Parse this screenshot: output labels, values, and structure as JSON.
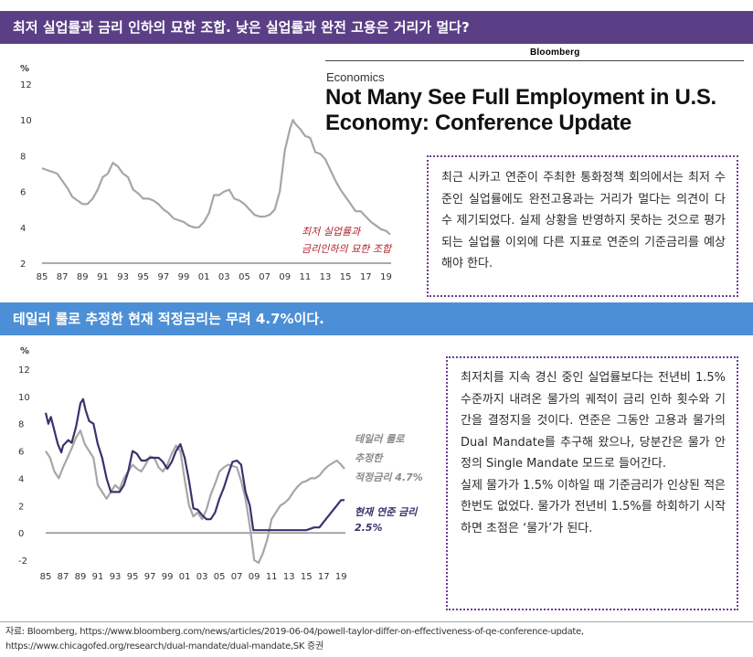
{
  "banner_top": {
    "title": "최저 실업률과 금리 인하의 묘한 조합. 낮은 실업률과 완전 고용은 거리가 멀다?",
    "color": "#5b3f86"
  },
  "banner_middle": {
    "title": "테일러 룰로 추정한 현재 적정금리는 무려 4.7%이다.",
    "color": "#4c8fd6"
  },
  "news_clip": {
    "source_logo": "Bloomberg",
    "section": "Economics",
    "headline": "Not Many See Full Employment in U.S. Economy: Conference Update"
  },
  "note_top": {
    "text": "최근 시카고 연준이 주최한 통화정책 회의에서는 최저 수준인 실업률에도 완전고용과는 거리가 멀다는 의견이 다수 제기되었다. 실제 상황을 반영하지 못하는 것으로 평가되는 실업률 이외에 다른 지표로 연준의 기준금리를 예상해야 한다."
  },
  "note_bottom": {
    "paragraph1": "최저치를 지속 경신 중인 실업률보다는 전년비 1.5% 수준까지 내려온 물가의 궤적이 금리 인하 횟수와 기간을 결정지을 것이다. 연준은 그동안 고용과 물가의 Dual Mandate를 추구해 왔으나, 당분간은 물가 안정의 Single Mandate 모드로 들어간다.",
    "paragraph2": "실제 물가가 1.5% 이하일 때 기준금리가 인상된 적은 한번도 없었다. 물가가 전년비 1.5%를 하회하기 시작하면 초점은 ‘물가’가 된다."
  },
  "source": {
    "line1": "자료: Bloomberg, https://www.bloomberg.com/news/articles/2019-06-04/powell-taylor-differ-on-effectiveness-of-qe-conference-update,",
    "line2": "https://www.chicagofed.org/research/dual-mandate/dual-mandate,SK 증권"
  },
  "chart_data": [
    {
      "type": "line",
      "title": "",
      "unit_label": "%",
      "ylim": [
        2,
        12
      ],
      "yticks": [
        2,
        4,
        6,
        8,
        10,
        12
      ],
      "xlim": [
        1985,
        2019.5
      ],
      "xtick_values": [
        1985,
        1987,
        1989,
        1991,
        1993,
        1995,
        1997,
        1999,
        2001,
        2003,
        2005,
        2007,
        2009,
        2011,
        2013,
        2015,
        2017,
        2019
      ],
      "xtick_labels": [
        "85",
        "87",
        "89",
        "91",
        "93",
        "95",
        "97",
        "99",
        "01",
        "03",
        "05",
        "07",
        "09",
        "11",
        "13",
        "15",
        "17",
        "19"
      ],
      "grid": false,
      "annotation": [
        "최저 실업률과",
        "금리인하의 묘한 조합"
      ],
      "series": [
        {
          "color": "#a6a6a6",
          "x": [
            1985,
            1985.5,
            1986,
            1986.5,
            1987,
            1987.5,
            1988,
            1988.5,
            1989,
            1989.5,
            1990,
            1990.5,
            1991,
            1991.5,
            1992,
            1992.5,
            1993,
            1993.5,
            1994,
            1994.5,
            1995,
            1995.5,
            1996,
            1996.5,
            1997,
            1997.5,
            1998,
            1998.5,
            1999,
            1999.5,
            2000,
            2000.5,
            2001,
            2001.5,
            2002,
            2002.5,
            2003,
            2003.5,
            2004,
            2004.5,
            2005,
            2005.5,
            2006,
            2006.5,
            2007,
            2007.5,
            2008,
            2008.5,
            2009,
            2009.5,
            2009.8,
            2010,
            2010.5,
            2011,
            2011.5,
            2012,
            2012.5,
            2013,
            2013.5,
            2014,
            2014.5,
            2015,
            2015.5,
            2016,
            2016.5,
            2017,
            2017.5,
            2018,
            2018.5,
            2019,
            2019.4
          ],
          "values": [
            7.3,
            7.2,
            7.1,
            7.0,
            6.6,
            6.2,
            5.7,
            5.5,
            5.3,
            5.3,
            5.6,
            6.1,
            6.8,
            7.0,
            7.6,
            7.4,
            7.0,
            6.8,
            6.1,
            5.9,
            5.6,
            5.6,
            5.5,
            5.3,
            5.0,
            4.8,
            4.5,
            4.4,
            4.3,
            4.1,
            4.0,
            4.0,
            4.3,
            4.8,
            5.8,
            5.8,
            6.0,
            6.1,
            5.6,
            5.5,
            5.3,
            5.0,
            4.7,
            4.6,
            4.6,
            4.7,
            5.0,
            6.0,
            8.3,
            9.5,
            10.0,
            9.8,
            9.5,
            9.1,
            9.0,
            8.2,
            8.1,
            7.8,
            7.2,
            6.6,
            6.1,
            5.7,
            5.3,
            4.9,
            4.9,
            4.6,
            4.3,
            4.1,
            3.9,
            3.8,
            3.6
          ]
        }
      ]
    },
    {
      "type": "line",
      "title": "",
      "unit_label": "%",
      "ylim": [
        -2,
        12
      ],
      "yticks": [
        -2,
        0,
        2,
        4,
        6,
        8,
        10,
        12
      ],
      "xlim": [
        1985,
        2019.5
      ],
      "xtick_values": [
        1985,
        1987,
        1989,
        1991,
        1993,
        1995,
        1997,
        1999,
        2001,
        2003,
        2005,
        2007,
        2009,
        2011,
        2013,
        2015,
        2017,
        2019
      ],
      "xtick_labels": [
        "85",
        "87",
        "89",
        "91",
        "93",
        "95",
        "97",
        "99",
        "01",
        "03",
        "05",
        "07",
        "09",
        "11",
        "13",
        "15",
        "17",
        "19"
      ],
      "grid": false,
      "annotations": {
        "gray": [
          "테일러 룰로",
          "추정한",
          "적정금리 4.7%"
        ],
        "purple": [
          "현재 연준 금리",
          "2.5%"
        ]
      },
      "series": [
        {
          "color": "#a6a6a6",
          "x": [
            1985,
            1985.5,
            1986,
            1986.5,
            1987,
            1987.5,
            1988,
            1988.5,
            1989,
            1989.5,
            1990,
            1990.5,
            1991,
            1991.5,
            1992,
            1992.5,
            1993,
            1993.5,
            1994,
            1994.5,
            1995,
            1995.5,
            1996,
            1996.5,
            1997,
            1997.5,
            1998,
            1998.5,
            1999,
            1999.5,
            2000,
            2000.5,
            2001,
            2001.5,
            2002,
            2002.5,
            2003,
            2003.5,
            2004,
            2004.5,
            2005,
            2005.5,
            2006,
            2006.5,
            2007,
            2007.5,
            2008,
            2008.5,
            2009,
            2009.5,
            2010,
            2010.5,
            2011,
            2011.5,
            2012,
            2012.5,
            2013,
            2013.5,
            2014,
            2014.5,
            2015,
            2015.5,
            2016,
            2016.5,
            2017,
            2017.5,
            2018,
            2018.5,
            2019,
            2019.4
          ],
          "values": [
            6.0,
            5.5,
            4.5,
            4.0,
            4.8,
            5.5,
            6.2,
            7.0,
            7.5,
            6.5,
            6.0,
            5.5,
            3.5,
            3.0,
            2.5,
            3.0,
            3.5,
            3.2,
            4.0,
            4.5,
            5.0,
            4.7,
            4.5,
            5.0,
            5.6,
            5.5,
            4.8,
            4.5,
            5.0,
            5.8,
            6.4,
            6.0,
            3.9,
            2.0,
            1.2,
            1.5,
            1.0,
            1.7,
            2.8,
            3.6,
            4.5,
            4.8,
            5.0,
            4.9,
            4.8,
            3.8,
            2.5,
            0.5,
            -2.0,
            -2.2,
            -1.5,
            -0.5,
            1.0,
            1.5,
            2.0,
            2.2,
            2.5,
            3.0,
            3.4,
            3.7,
            3.8,
            4.0,
            4.0,
            4.2,
            4.6,
            4.9,
            5.1,
            5.3,
            5.0,
            4.7
          ]
        },
        {
          "color": "#3f2f6e",
          "x": [
            1985,
            1985.3,
            1985.6,
            1986,
            1986.4,
            1986.8,
            1987,
            1987.3,
            1987.6,
            1988,
            1988.5,
            1989,
            1989.3,
            1989.6,
            1990,
            1990.5,
            1991,
            1991.5,
            1992,
            1992.5,
            1993,
            1993.5,
            1994,
            1994.5,
            1995,
            1995.5,
            1996,
            1996.5,
            1997,
            1997.5,
            1998,
            1998.5,
            1999,
            1999.5,
            2000,
            2000.5,
            2001,
            2001.5,
            2002,
            2002.5,
            2003,
            2003.5,
            2004,
            2004.5,
            2005,
            2005.5,
            2006,
            2006.5,
            2007,
            2007.5,
            2008,
            2008.5,
            2008.9,
            2009.5,
            2010,
            2011,
            2012,
            2013,
            2014,
            2015,
            2015.9,
            2016.5,
            2017,
            2017.5,
            2018,
            2018.5,
            2019,
            2019.4
          ],
          "values": [
            8.8,
            8.0,
            8.5,
            7.5,
            6.5,
            5.9,
            6.4,
            6.6,
            6.8,
            6.6,
            7.8,
            9.5,
            9.8,
            9.0,
            8.2,
            8.0,
            6.5,
            5.5,
            4.0,
            3.0,
            3.0,
            3.0,
            3.5,
            4.5,
            6.0,
            5.8,
            5.3,
            5.3,
            5.5,
            5.5,
            5.5,
            5.2,
            4.7,
            5.2,
            6.0,
            6.5,
            5.5,
            3.8,
            1.8,
            1.7,
            1.3,
            1.0,
            1.0,
            1.5,
            2.5,
            3.3,
            4.3,
            5.2,
            5.3,
            5.0,
            3.0,
            2.0,
            0.2,
            0.2,
            0.2,
            0.2,
            0.2,
            0.2,
            0.2,
            0.2,
            0.4,
            0.4,
            0.8,
            1.2,
            1.6,
            2.0,
            2.4,
            2.4
          ]
        }
      ]
    }
  ]
}
